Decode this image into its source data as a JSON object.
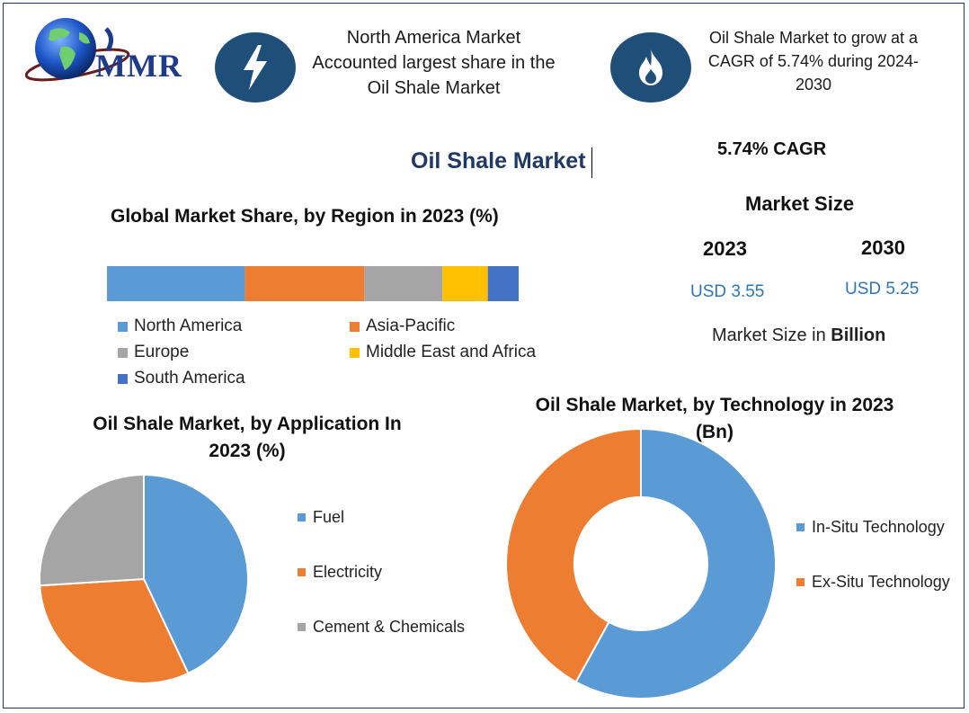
{
  "logo": {
    "text": "MMR"
  },
  "highlights": [
    {
      "icon": "lightning-icon",
      "text_lines": [
        "North America Market",
        "Accounted largest share in the",
        "Oil Shale Market"
      ]
    },
    {
      "icon": "flame-icon",
      "text_lines": [
        "Oil Shale Market to grow at a",
        "CAGR of 5.74% during 2024-",
        "2030"
      ]
    }
  ],
  "main_title": "Oil Shale Market",
  "cagr": "5.74% CAGR",
  "market_size": {
    "heading": "Market Size",
    "year1": "2023",
    "year2": "2030",
    "value1": "USD 3.55",
    "value2": "USD 5.25",
    "unit_prefix": "Market Size in ",
    "unit_bold": "Billion"
  },
  "colors": {
    "blue": "#5b9bd5",
    "orange": "#ed7d31",
    "gray": "#a5a5a5",
    "yellow": "#ffc000",
    "darkblue": "#4472c4",
    "navy": "#1f4e79"
  },
  "chart_data": [
    {
      "type": "bar",
      "title": "Global Market Share, by Region in 2023 (%)",
      "orientation": "horizontal-stacked",
      "series": [
        {
          "name": "North America",
          "value": 33.5,
          "color": "#5b9bd5"
        },
        {
          "name": "Asia-Pacific",
          "value": 29.0,
          "color": "#ed7d31"
        },
        {
          "name": "Europe",
          "value": 19.0,
          "color": "#a5a5a5"
        },
        {
          "name": "Middle East and Africa",
          "value": 11.0,
          "color": "#ffc000"
        },
        {
          "name": "South America",
          "value": 7.5,
          "color": "#4472c4"
        }
      ],
      "legend_placement": "bottom"
    },
    {
      "type": "pie",
      "title_lines": [
        "Oil Shale Market, by Application In",
        "2023 (%)"
      ],
      "slices": [
        {
          "name": "Fuel",
          "value": 43,
          "color": "#5b9bd5"
        },
        {
          "name": "Electricity",
          "value": 31,
          "color": "#ed7d31"
        },
        {
          "name": "Cement & Chemicals",
          "value": 26,
          "color": "#a5a5a5"
        }
      ],
      "legend_placement": "right"
    },
    {
      "type": "pie",
      "variant": "donut",
      "title_lines": [
        "Oil Shale Market, by Technology in 2023",
        "(Bn)"
      ],
      "slices": [
        {
          "name": "In-Situ Technology",
          "value": 58,
          "color": "#5b9bd5"
        },
        {
          "name": "Ex-Situ Technology",
          "value": 42,
          "color": "#ed7d31"
        }
      ],
      "legend_placement": "right"
    }
  ]
}
